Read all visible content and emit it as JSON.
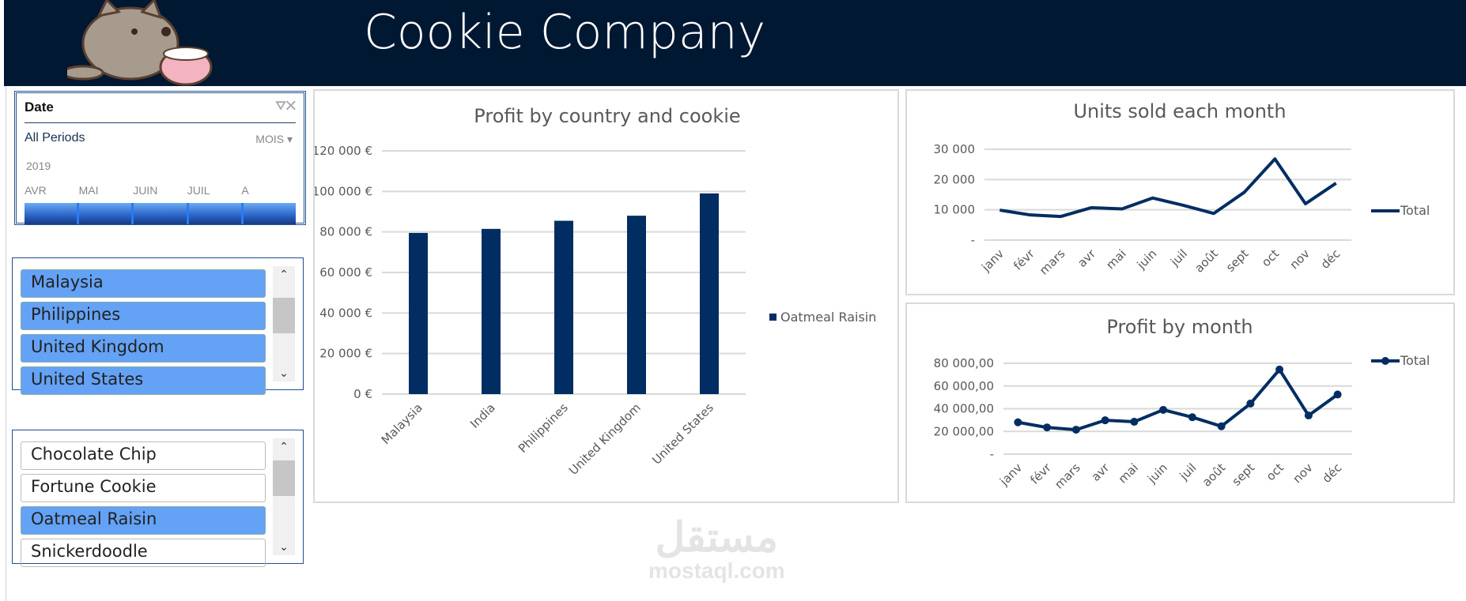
{
  "header": {
    "title": "Cookie Company"
  },
  "date_slicer": {
    "title": "Date",
    "filter": "All Periods",
    "level": "MOIS",
    "year": "2019",
    "months": [
      "AVR",
      "MAI",
      "JUIN",
      "JUIL",
      "A"
    ]
  },
  "country_slicer": {
    "items": [
      {
        "label": "Malaysia",
        "selected": true
      },
      {
        "label": "Philippines",
        "selected": true
      },
      {
        "label": "United Kingdom",
        "selected": true
      },
      {
        "label": "United States",
        "selected": true
      }
    ]
  },
  "cookie_slicer": {
    "items": [
      {
        "label": "Chocolate Chip",
        "selected": false
      },
      {
        "label": "Fortune Cookie",
        "selected": false
      },
      {
        "label": "Oatmeal Raisin",
        "selected": true
      },
      {
        "label": "Snickerdoodle",
        "selected": false
      }
    ]
  },
  "watermark": {
    "arabic": "مستقل",
    "latin": "mostaql.com"
  },
  "colors": {
    "header": "#011833",
    "series": "#022d62",
    "selected": "#64a2f5"
  },
  "chart_data": [
    {
      "type": "bar",
      "title": "Profit by country and cookie",
      "categories": [
        "Malaysia",
        "India",
        "Philippines",
        "United Kingdom",
        "United States"
      ],
      "series": [
        {
          "name": "Oatmeal Raisin",
          "values": [
            79500,
            81500,
            85500,
            88000,
            99000
          ]
        }
      ],
      "ylim": [
        0,
        120000
      ],
      "yticks": [
        "0 €",
        "20 000 €",
        "40 000 €",
        "60 000 €",
        "80 000 €",
        "100 000 €",
        "120 000 €"
      ],
      "legend": "right",
      "grid": true
    },
    {
      "type": "line",
      "title": "Units sold each month",
      "categories": [
        "janv",
        "févr",
        "mars",
        "avr",
        "mai",
        "juin",
        "juil",
        "août",
        "sept",
        "oct",
        "nov",
        "déc"
      ],
      "series": [
        {
          "name": "Total",
          "values": [
            9900,
            8300,
            7800,
            10700,
            10300,
            13900,
            11500,
            8800,
            15800,
            26800,
            12000,
            18800
          ]
        }
      ],
      "ylim": [
        0,
        30000
      ],
      "yticks": [
        "-",
        "10 000",
        "20 000",
        "30 000"
      ],
      "legend": "right",
      "grid": true,
      "markers": false
    },
    {
      "type": "line",
      "title": "Profit by month",
      "categories": [
        "janv",
        "févr",
        "mars",
        "avr",
        "mai",
        "juin",
        "juil",
        "août",
        "sept",
        "oct",
        "nov",
        "déc"
      ],
      "series": [
        {
          "name": "Total",
          "values": [
            28000,
            23500,
            21500,
            29800,
            28500,
            39000,
            32500,
            24500,
            44500,
            74500,
            34000,
            52500
          ]
        }
      ],
      "ylim": [
        0,
        80000
      ],
      "yticks": [
        "-",
        "20 000,00",
        "40 000,00",
        "60 000,00",
        "80 000,00"
      ],
      "legend": "right",
      "grid": true,
      "markers": true
    }
  ]
}
